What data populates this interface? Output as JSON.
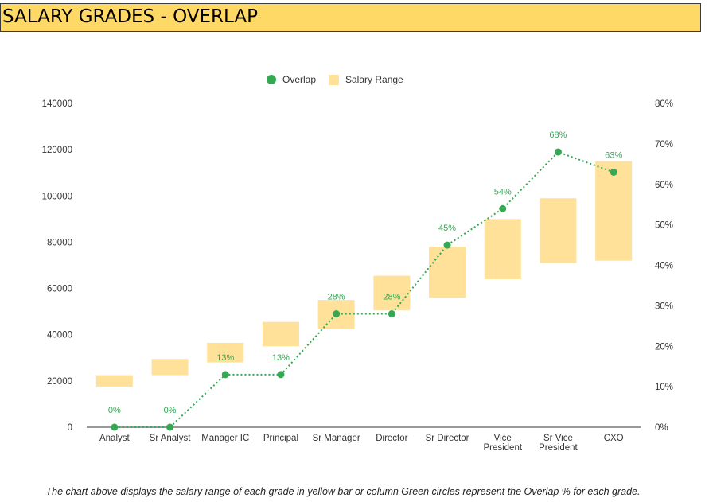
{
  "page": {
    "title": "SALARY GRADES - OVERLAP"
  },
  "caption": "The chart above displays the salary range of each grade in yellow bar or column Green circles represent the Overlap % for each grade.",
  "chart_data": {
    "type": "bar",
    "categories": [
      "Analyst",
      "Sr Analyst",
      "Manager IC",
      "Principal",
      "Sr Manager",
      "Director",
      "Sr Director",
      "Vice President",
      "Sr Vice President",
      "CXO"
    ],
    "category_lines": [
      [
        "Analyst"
      ],
      [
        "Sr Analyst"
      ],
      [
        "Manager IC"
      ],
      [
        "Principal"
      ],
      [
        "Sr Manager"
      ],
      [
        "Director"
      ],
      [
        "Sr Director"
      ],
      [
        "Vice",
        "President"
      ],
      [
        "Sr Vice",
        "President"
      ],
      [
        "CXO"
      ]
    ],
    "series": [
      {
        "name": "Salary Range",
        "type": "floating-bar",
        "axis": "left",
        "color": "#ffe199",
        "min": [
          17500,
          22500,
          28000,
          35000,
          42500,
          50500,
          56000,
          64000,
          71000,
          72000
        ],
        "max": [
          22500,
          29500,
          36500,
          45500,
          55000,
          65500,
          78000,
          90000,
          99000,
          115000
        ]
      },
      {
        "name": "Overlap",
        "type": "line",
        "axis": "right",
        "color": "#34a853",
        "line_style": "dotted",
        "values": [
          0,
          0,
          13,
          13,
          28,
          28,
          45,
          54,
          68,
          63
        ],
        "labels": [
          "0%",
          "0%",
          "13%",
          "13%",
          "28%",
          "28%",
          "45%",
          "54%",
          "68%",
          "63%"
        ]
      }
    ],
    "legend": {
      "placement": "top-center",
      "entries": [
        {
          "name": "Overlap",
          "shape": "circle",
          "color": "#34a853"
        },
        {
          "name": "Salary Range",
          "shape": "square",
          "color": "#ffe199"
        }
      ]
    },
    "y_left": {
      "min": 0,
      "max": 140000,
      "ticks": [
        0,
        20000,
        40000,
        60000,
        80000,
        100000,
        120000,
        140000
      ],
      "tick_labels": [
        "0",
        "20000",
        "40000",
        "60000",
        "80000",
        "100000",
        "120000",
        "140000"
      ]
    },
    "y_right": {
      "min": 0,
      "max": 80,
      "ticks": [
        0,
        10,
        20,
        30,
        40,
        50,
        60,
        70,
        80
      ],
      "tick_labels": [
        "0%",
        "10%",
        "20%",
        "30%",
        "40%",
        "50%",
        "60%",
        "70%",
        "80%"
      ]
    },
    "grid": false
  }
}
